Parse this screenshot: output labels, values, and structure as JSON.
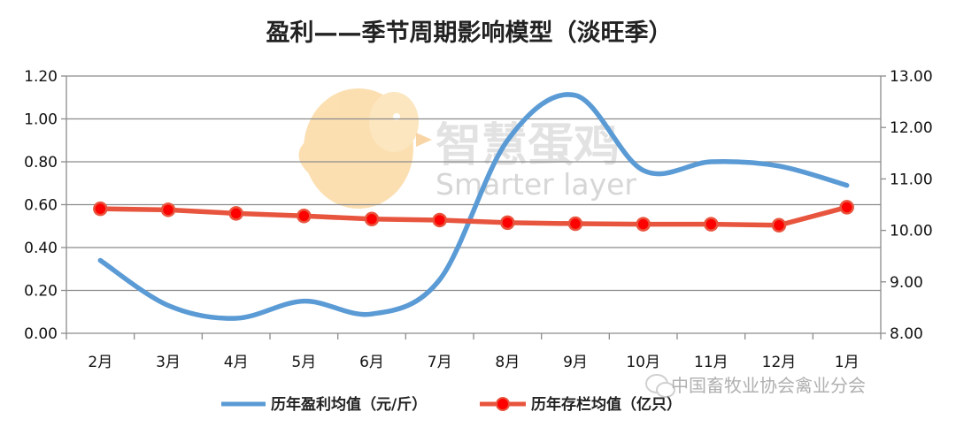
{
  "chart_data": {
    "type": "line",
    "title": "盈利——季节周期影响模型（淡旺季）",
    "categories": [
      "2月",
      "3月",
      "4月",
      "5月",
      "6月",
      "7月",
      "8月",
      "9月",
      "10月",
      "11月",
      "12月",
      "1月"
    ],
    "y_left": {
      "ylim": [
        0,
        1.2
      ],
      "ticks": [
        "0.00",
        "0.20",
        "0.40",
        "0.60",
        "0.80",
        "1.00",
        "1.20"
      ]
    },
    "y_right": {
      "ylim": [
        8,
        13
      ],
      "ticks": [
        "8.00",
        "9.00",
        "10.00",
        "11.00",
        "12.00",
        "13.00"
      ]
    },
    "grid": true,
    "legend_position": "bottom",
    "series": [
      {
        "name": "历年盈利均值（元/斤）",
        "axis": "left",
        "color": "#5b9bd5",
        "smooth": true,
        "values": [
          0.34,
          0.13,
          0.07,
          0.15,
          0.09,
          0.25,
          0.9,
          1.11,
          0.76,
          0.8,
          0.78,
          0.69
        ]
      },
      {
        "name": "历年存栏均值（亿只）",
        "axis": "right",
        "color": "#e8553e",
        "marker_color": "#ff0000",
        "values": [
          10.42,
          10.4,
          10.33,
          10.28,
          10.22,
          10.2,
          10.15,
          10.13,
          10.12,
          10.12,
          10.1,
          10.45
        ]
      }
    ]
  },
  "watermark": {
    "cn": "智慧蛋鸡",
    "en": "Smarter layer"
  },
  "source_text": "中国畜牧业协会禽业分会"
}
